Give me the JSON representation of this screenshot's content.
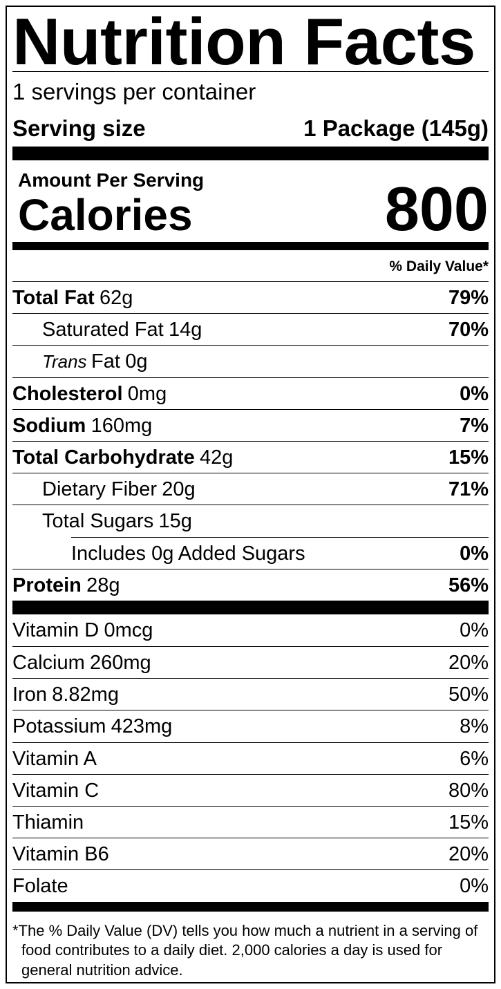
{
  "title": "Nutrition Facts",
  "servings_per_container": "1 servings per container",
  "serving_size": {
    "label": "Serving size",
    "value": "1 Package (145g)"
  },
  "amount_per_serving": "Amount Per Serving",
  "calories": {
    "label": "Calories",
    "value": "800"
  },
  "daily_value_header": "% Daily Value*",
  "nutrients": [
    {
      "name": "Total Fat",
      "amount": "62g",
      "daily_value": "79%"
    },
    {
      "name": "Saturated Fat",
      "amount": "14g",
      "daily_value": "70%"
    },
    {
      "prefix": "Trans",
      "name": "Fat",
      "amount": "0g"
    },
    {
      "name": "Cholesterol",
      "amount": "0mg",
      "daily_value": "0%"
    },
    {
      "name": "Sodium",
      "amount": "160mg",
      "daily_value": "7%"
    },
    {
      "name": "Total Carbohydrate",
      "amount": "42g",
      "daily_value": "15%"
    },
    {
      "name": "Dietary Fiber",
      "amount": "20g",
      "daily_value": "71%"
    },
    {
      "name": "Total Sugars",
      "amount": "15g"
    },
    {
      "name": "Includes 0g Added Sugars",
      "daily_value": "0%"
    },
    {
      "name": "Protein",
      "amount": "28g",
      "daily_value": "56%"
    }
  ],
  "vitamins": [
    {
      "name": "Vitamin D",
      "amount": "0mcg",
      "daily_value": "0%"
    },
    {
      "name": "Calcium",
      "amount": "260mg",
      "daily_value": "20%"
    },
    {
      "name": "Iron",
      "amount": "8.82mg",
      "daily_value": "50%"
    },
    {
      "name": "Potassium",
      "amount": "423mg",
      "daily_value": "8%"
    },
    {
      "name": "Vitamin A",
      "daily_value": "6%"
    },
    {
      "name": "Vitamin C",
      "daily_value": "80%"
    },
    {
      "name": "Thiamin",
      "daily_value": "15%"
    },
    {
      "name": "Vitamin B6",
      "daily_value": "20%"
    },
    {
      "name": "Folate",
      "daily_value": "0%"
    }
  ],
  "footnote": "*The % Daily Value (DV) tells you how much a nutrient in a serving of food contributes to a daily diet. 2,000 calories a day is used for general nutrition advice."
}
